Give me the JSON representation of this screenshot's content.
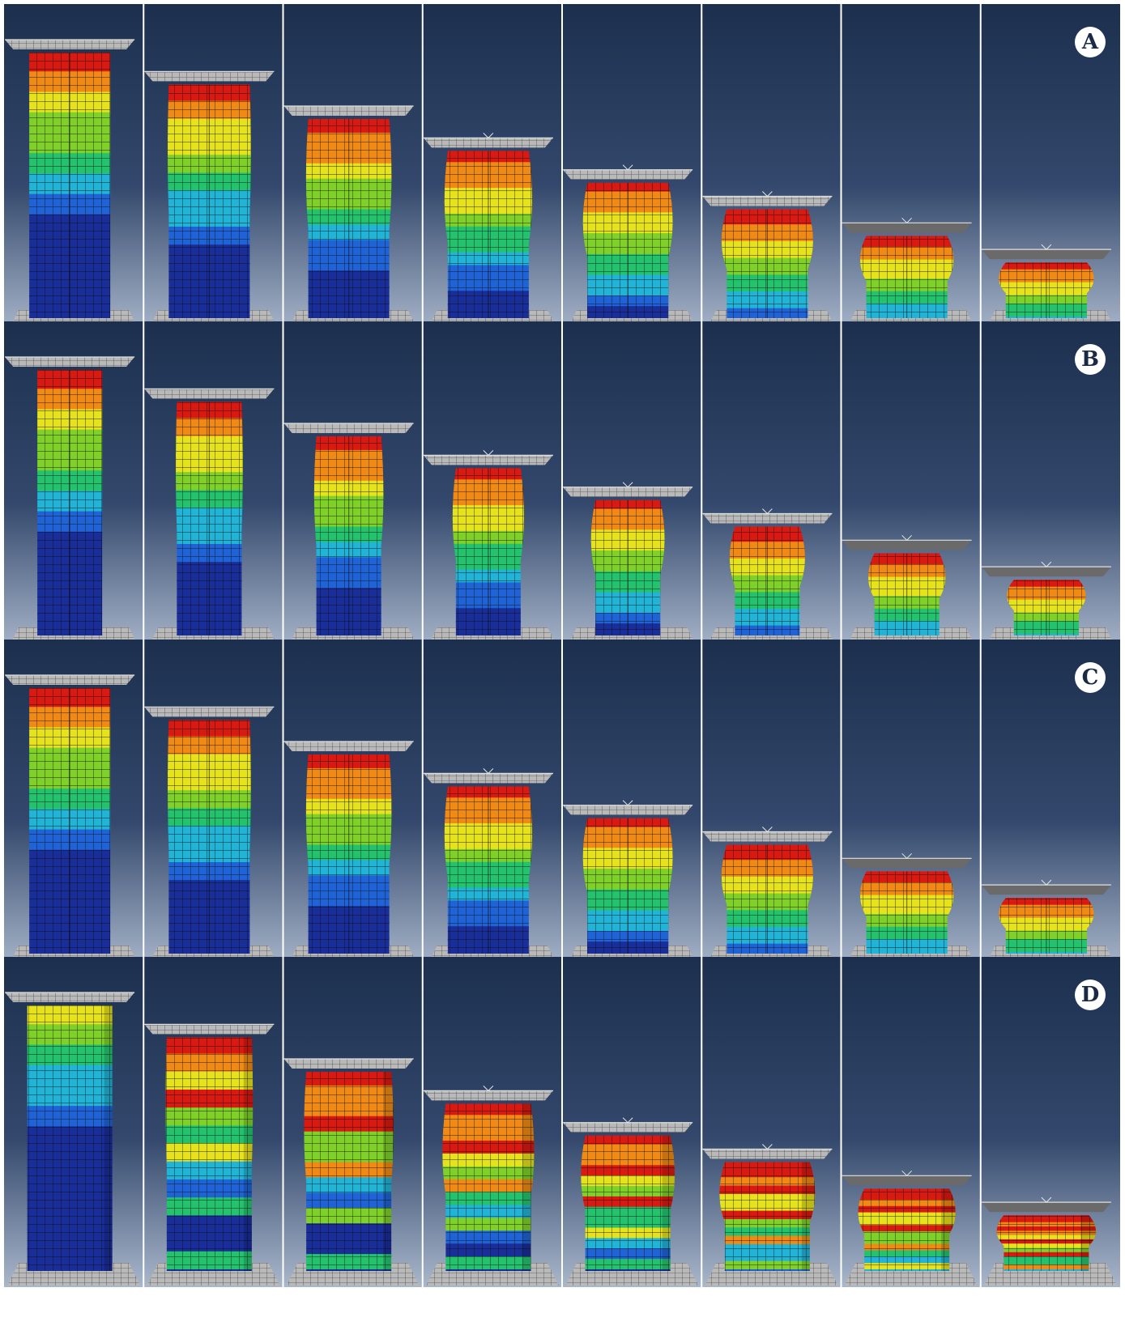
{
  "rows": [
    {
      "label": "A",
      "shape": "square-tube"
    },
    {
      "label": "B",
      "shape": "square-tube-rounded"
    },
    {
      "label": "C",
      "shape": "star-tube"
    },
    {
      "label": "D",
      "shape": "circular-tube"
    }
  ],
  "frames_per_row": 8,
  "crush_levels": [
    0,
    0.12,
    0.25,
    0.37,
    0.49,
    0.59,
    0.69,
    0.79
  ],
  "colors": {
    "background_top": "#1c2f4e",
    "background_bottom": "#a9b7cb",
    "divider": "#ffffff",
    "plate": "#b9b9b9",
    "contour": [
      "#1a2e9a",
      "#1f63d6",
      "#22b4d6",
      "#25c26e",
      "#7fd12a",
      "#e6e21c",
      "#f08a14",
      "#d91a12"
    ]
  }
}
